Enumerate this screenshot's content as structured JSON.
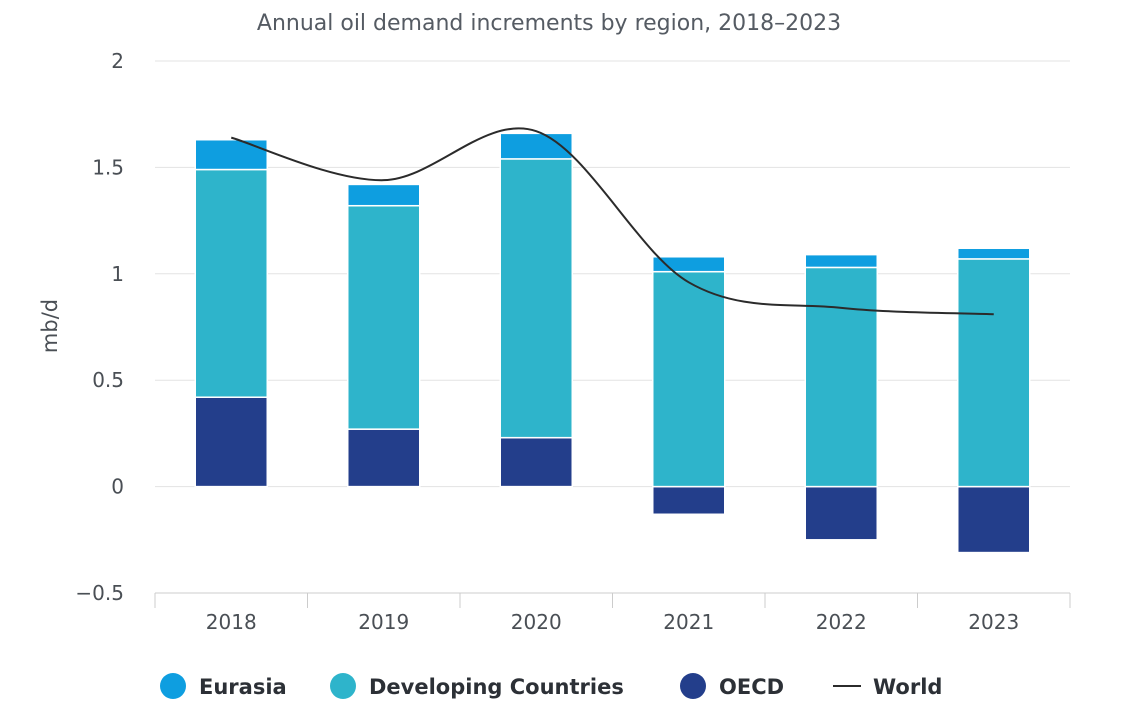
{
  "chart_data": {
    "type": "bar",
    "stacked": true,
    "title": "Annual oil demand increments by region, 2018–2023",
    "ylabel": "mb/d",
    "xlabel": "",
    "ylim": [
      -0.5,
      2
    ],
    "yticks": [
      {
        "value": -0.5,
        "label": "−0.5"
      },
      {
        "value": 0,
        "label": "0"
      },
      {
        "value": 0.5,
        "label": "0.5"
      },
      {
        "value": 1,
        "label": "1"
      },
      {
        "value": 1.5,
        "label": "1.5"
      },
      {
        "value": 2,
        "label": "2"
      }
    ],
    "grid": true,
    "legend_position": "bottom",
    "categories": [
      "2018",
      "2019",
      "2020",
      "2021",
      "2022",
      "2023"
    ],
    "series": [
      {
        "name": "OECD",
        "kind": "bar",
        "color": "#233e8b",
        "values": [
          0.42,
          0.27,
          0.23,
          -0.13,
          -0.25,
          -0.31
        ]
      },
      {
        "name": "Developing Countries",
        "kind": "bar",
        "color": "#2eb4cb",
        "values": [
          1.07,
          1.05,
          1.31,
          1.01,
          1.03,
          1.07
        ]
      },
      {
        "name": "Eurasia",
        "kind": "bar",
        "color": "#0e9ee0",
        "values": [
          0.14,
          0.1,
          0.12,
          0.07,
          0.06,
          0.05
        ]
      },
      {
        "name": "World",
        "kind": "line",
        "color": "#2b2b2b",
        "values": [
          1.64,
          1.44,
          1.67,
          0.96,
          0.84,
          0.81
        ]
      }
    ],
    "legend_order": [
      "Eurasia",
      "Developing Countries",
      "OECD",
      "World"
    ]
  }
}
